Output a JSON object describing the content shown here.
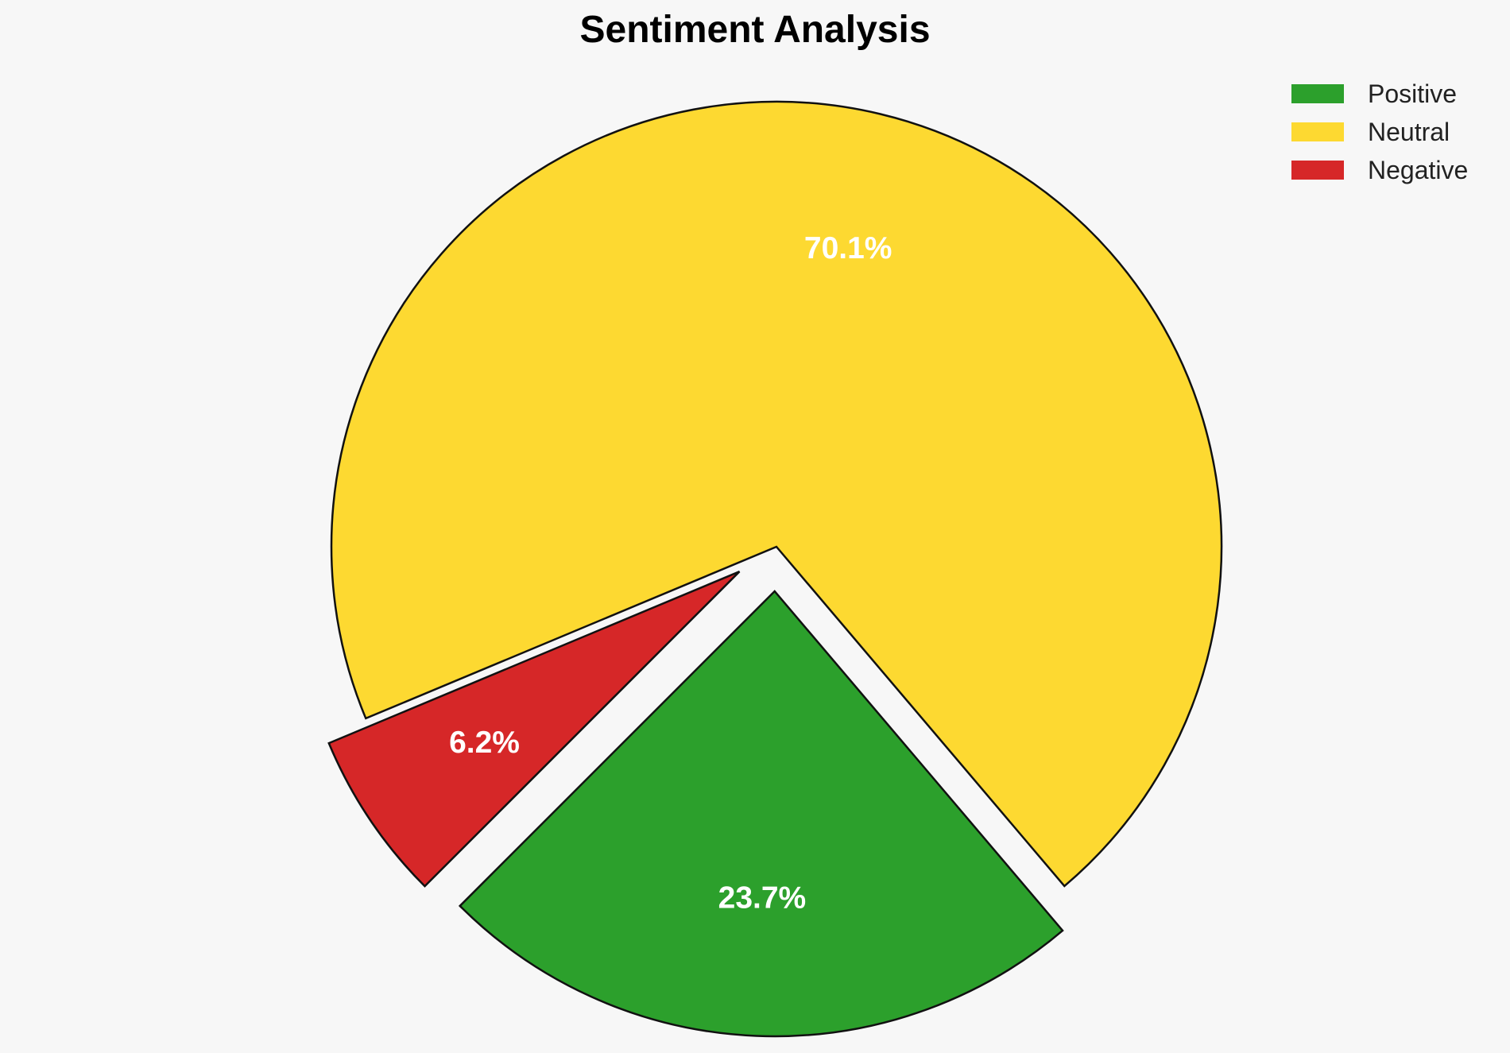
{
  "chart_data": {
    "type": "pie",
    "title": "Sentiment Analysis",
    "slices": [
      {
        "label": "Positive",
        "value": 23.7,
        "display": "23.7%",
        "color": "#2ca02c"
      },
      {
        "label": "Neutral",
        "value": 70.1,
        "display": "70.1%",
        "color": "#fdd931"
      },
      {
        "label": "Negative",
        "value": 6.2,
        "display": "6.2%",
        "color": "#d62728"
      }
    ],
    "legend_position": "top-right"
  }
}
